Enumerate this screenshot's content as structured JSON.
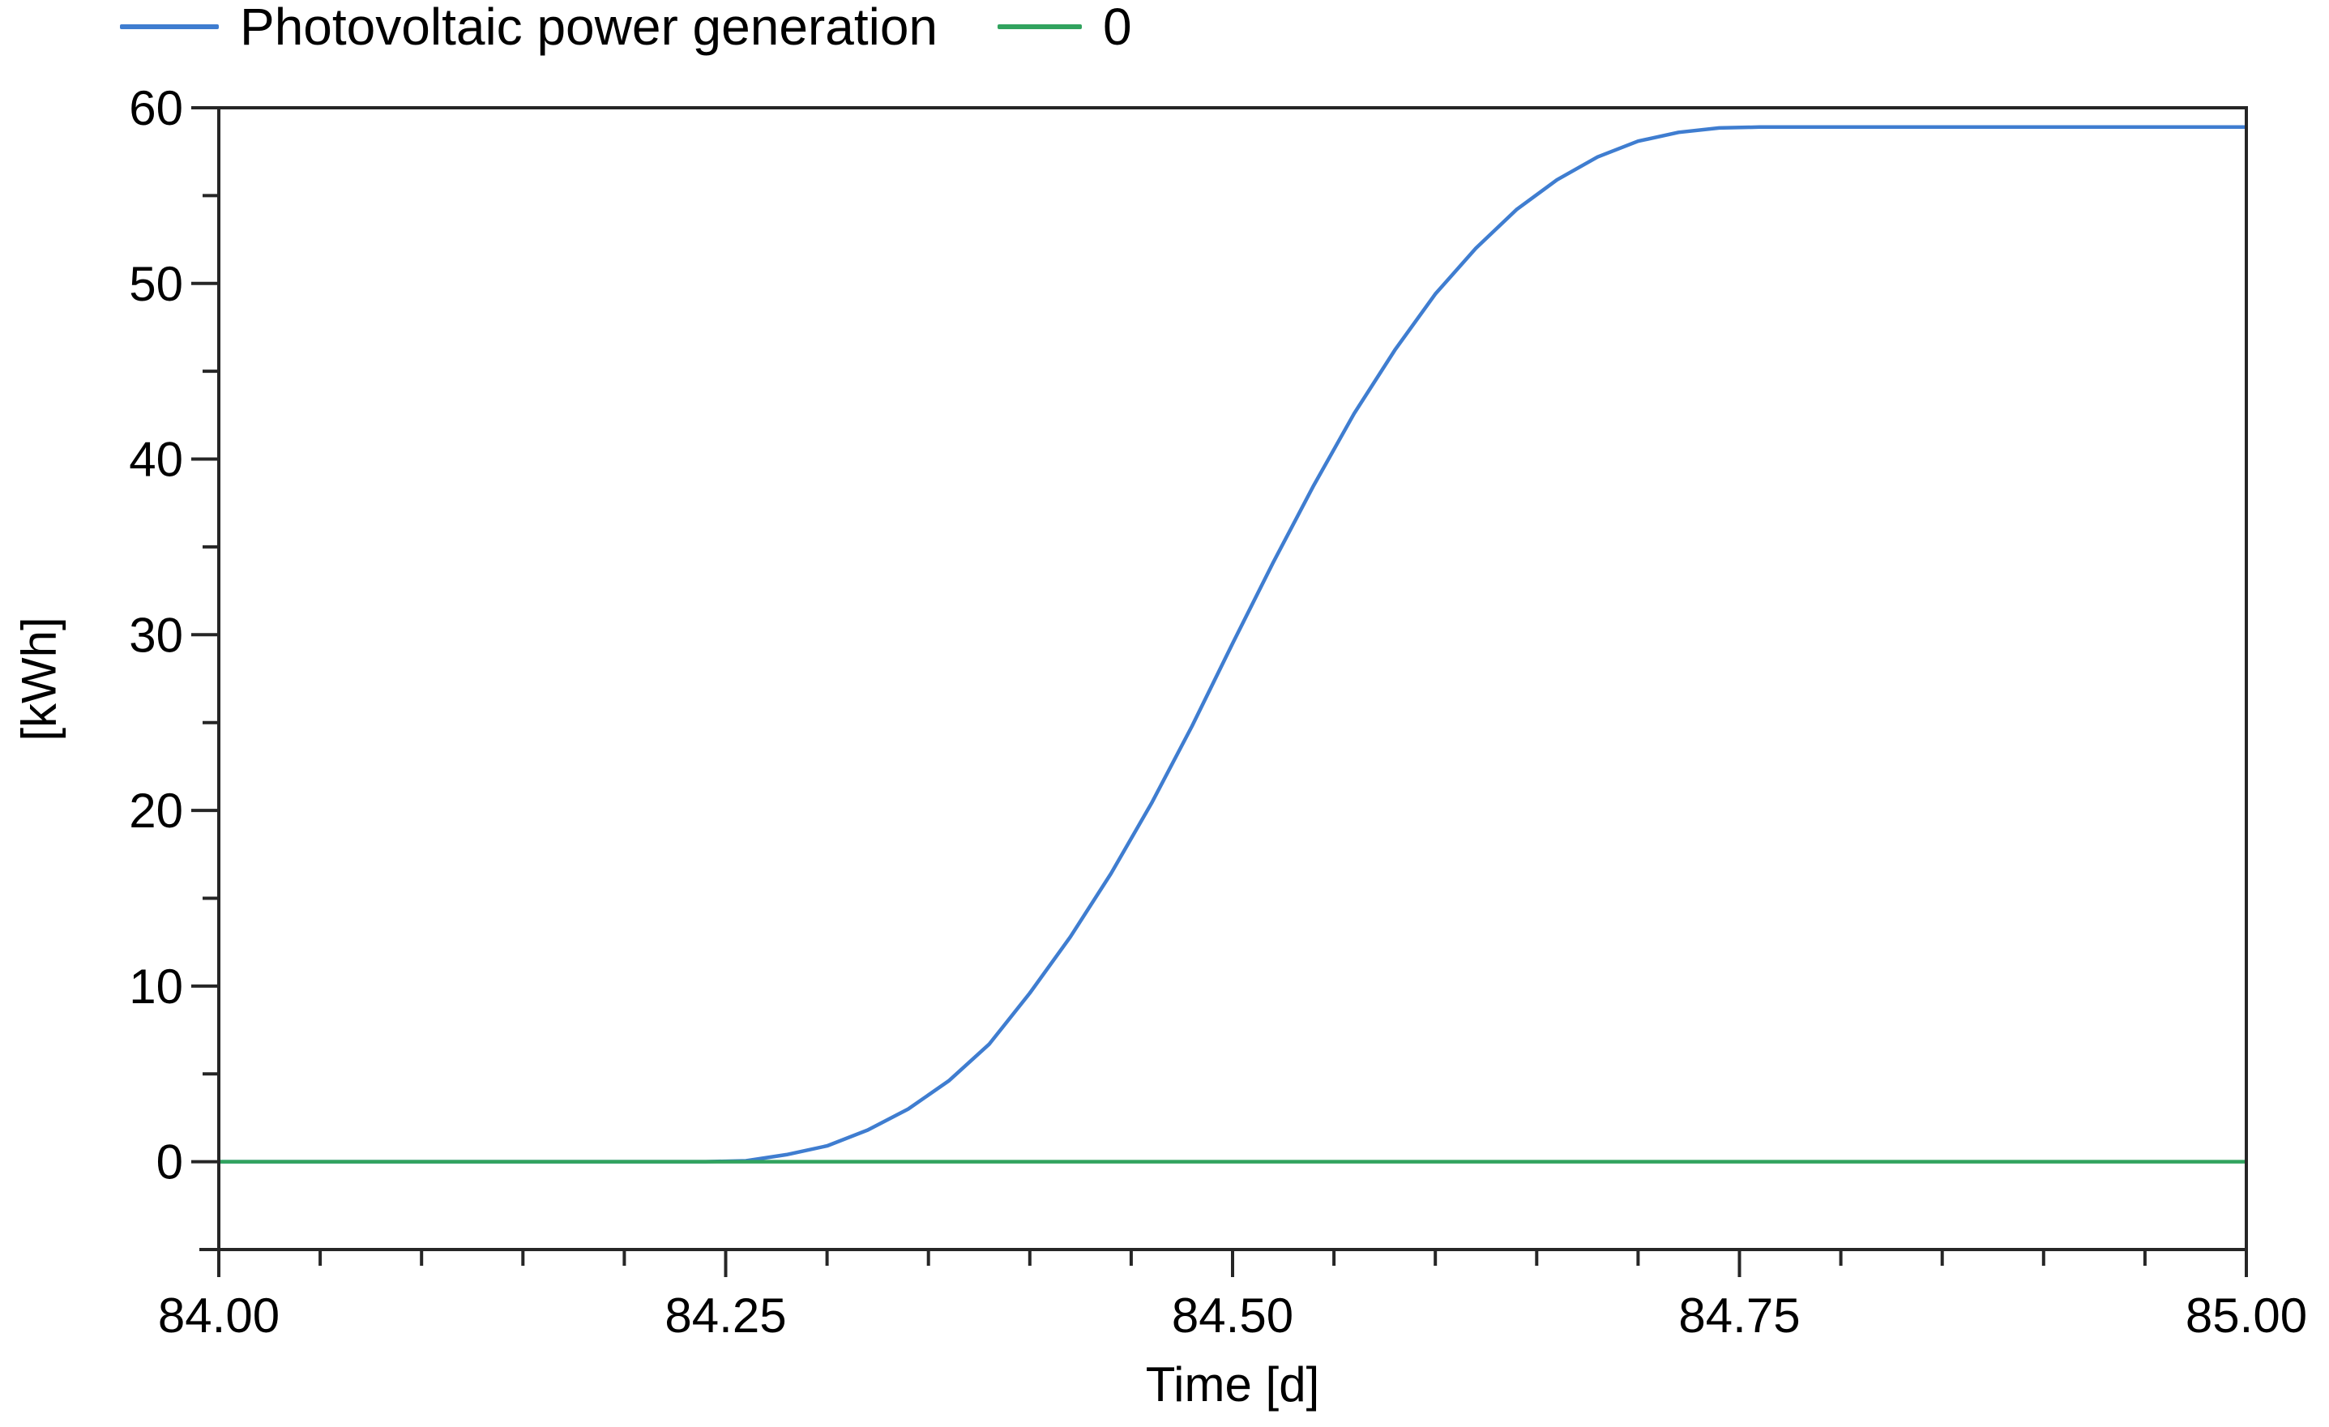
{
  "colors": {
    "background": "#ffffff",
    "axis": "#262626",
    "text": "#000000",
    "pv_line": "#3f7dd0",
    "zero_line": "#31a35e"
  },
  "chart_data": {
    "type": "line",
    "title": "",
    "xlabel": "Time [d]",
    "ylabel": "[kWh]",
    "xlim": [
      84.0,
      85.0
    ],
    "ylim": [
      -5,
      60
    ],
    "grid": false,
    "legend_position": "top-left",
    "x_major_ticks": [
      84.0,
      84.25,
      84.5,
      84.75,
      85.0
    ],
    "x_tick_labels": [
      "84.00",
      "84.25",
      "84.50",
      "84.75",
      "85.00"
    ],
    "x_minor_ticks": [
      84.05,
      84.1,
      84.15,
      84.2,
      84.3,
      84.35,
      84.4,
      84.45,
      84.55,
      84.6,
      84.65,
      84.7,
      84.8,
      84.85,
      84.9,
      84.95
    ],
    "y_major_ticks": [
      0,
      10,
      20,
      30,
      40,
      50,
      60
    ],
    "y_tick_labels": [
      "0",
      "10",
      "20",
      "30",
      "40",
      "50",
      "60"
    ],
    "y_minor_ticks": [
      5,
      15,
      25,
      35,
      45,
      55
    ],
    "series": [
      {
        "name": "Photovoltaic power generation",
        "color": "#3f7dd0",
        "points": [
          [
            84.0,
            0
          ],
          [
            84.05,
            0
          ],
          [
            84.1,
            0
          ],
          [
            84.15,
            0
          ],
          [
            84.2,
            0
          ],
          [
            84.24,
            0
          ],
          [
            84.26,
            0.05
          ],
          [
            84.28,
            0.4
          ],
          [
            84.3,
            0.9
          ],
          [
            84.32,
            1.8
          ],
          [
            84.34,
            3.0
          ],
          [
            84.36,
            4.6
          ],
          [
            84.38,
            6.7
          ],
          [
            84.4,
            9.6
          ],
          [
            84.42,
            12.8
          ],
          [
            84.44,
            16.4
          ],
          [
            84.46,
            20.4
          ],
          [
            84.48,
            24.8
          ],
          [
            84.5,
            29.5
          ],
          [
            84.52,
            34.1
          ],
          [
            84.54,
            38.5
          ],
          [
            84.56,
            42.6
          ],
          [
            84.58,
            46.2
          ],
          [
            84.6,
            49.4
          ],
          [
            84.62,
            52.0
          ],
          [
            84.64,
            54.2
          ],
          [
            84.66,
            55.9
          ],
          [
            84.68,
            57.2
          ],
          [
            84.7,
            58.1
          ],
          [
            84.72,
            58.6
          ],
          [
            84.74,
            58.85
          ],
          [
            84.76,
            58.9
          ],
          [
            84.8,
            58.9
          ],
          [
            84.85,
            58.9
          ],
          [
            84.9,
            58.9
          ],
          [
            84.95,
            58.9
          ],
          [
            85.0,
            58.9
          ]
        ]
      },
      {
        "name": "0",
        "color": "#31a35e",
        "points": [
          [
            84.0,
            0
          ],
          [
            85.0,
            0
          ]
        ]
      }
    ]
  }
}
